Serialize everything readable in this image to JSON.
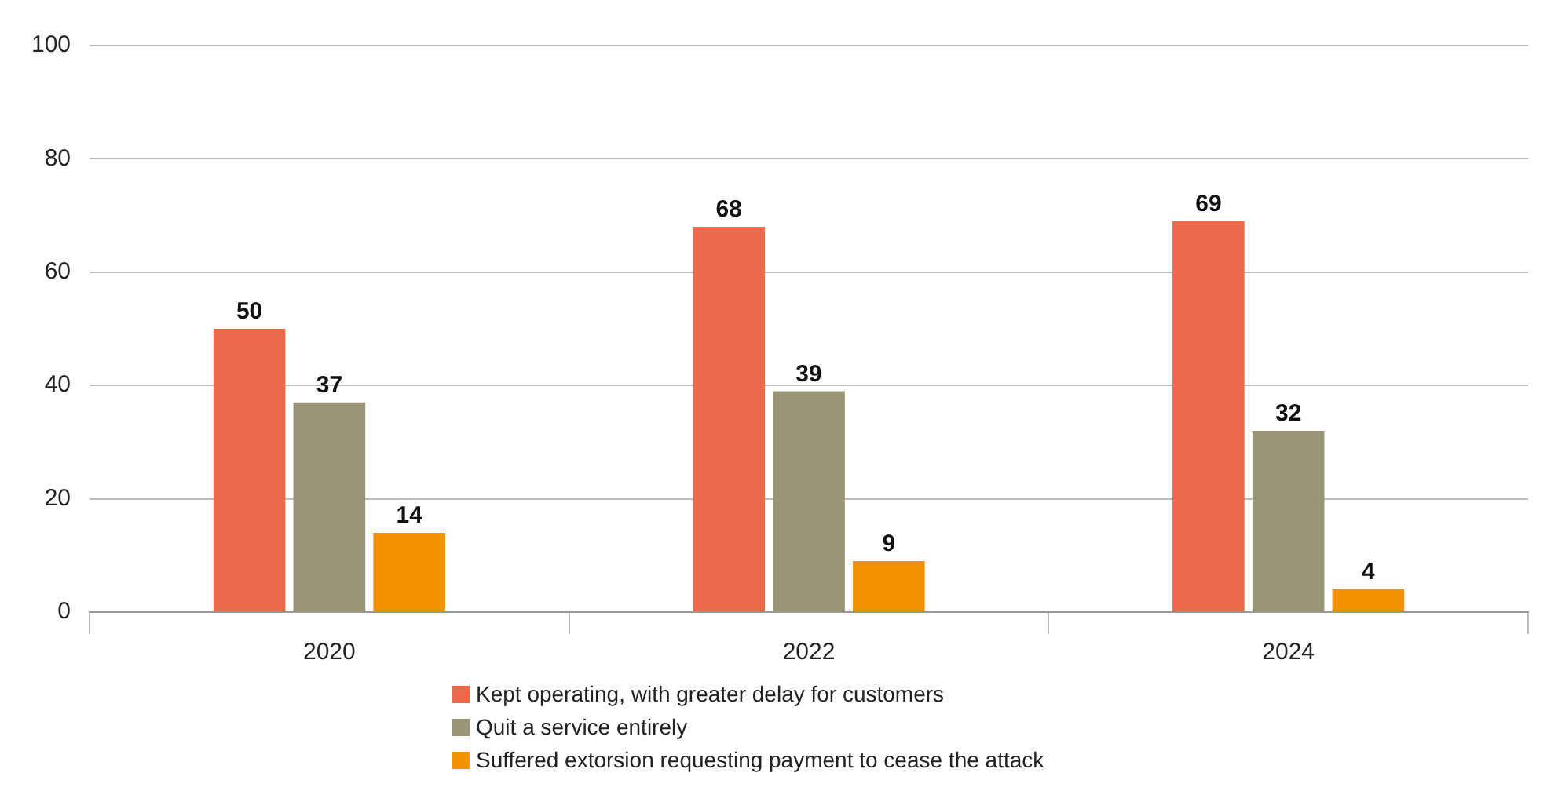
{
  "chart_data": {
    "type": "bar",
    "categories": [
      "2020",
      "2022",
      "2024"
    ],
    "series": [
      {
        "name": "Kept operating, with greater delay for customers",
        "color": "#ec694c",
        "values": [
          50,
          68,
          69
        ]
      },
      {
        "name": "Quit a service entirely",
        "color": "#999677",
        "values": [
          37,
          39,
          32
        ]
      },
      {
        "name": "Suffered extorsion requesting payment to cease the attack",
        "color": "#f39200",
        "values": [
          14,
          9,
          4
        ]
      }
    ],
    "ylim": [
      0,
      100
    ],
    "yticks": [
      0,
      20,
      40,
      60,
      80,
      100
    ],
    "grid": "y",
    "legend": "bottom",
    "data_labels": true
  }
}
